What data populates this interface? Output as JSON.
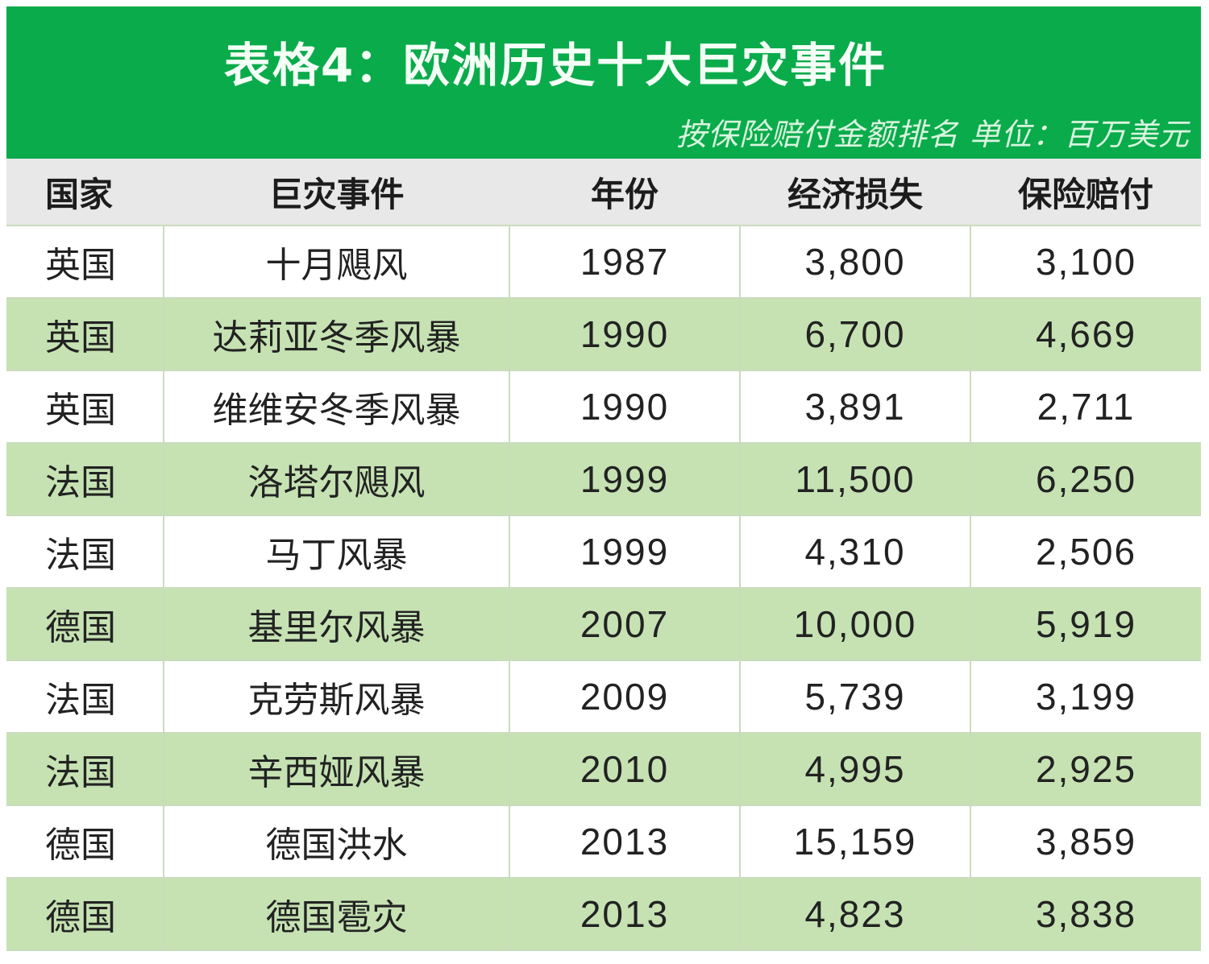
{
  "colors": {
    "banner_bg": "#0aab4b",
    "header_row_bg": "#e8e8e8",
    "alt_row_bg": "#c6e2b3",
    "plain_row_bg": "#ffffff"
  },
  "banner": {
    "title": "表格4：欧洲历史十大巨灾事件",
    "subtitle": "按保险赔付金额排名  单位：百万美元"
  },
  "table": {
    "headers": [
      "国家",
      "巨灾事件",
      "年份",
      "经济损失",
      "保险赔付"
    ],
    "rows": [
      [
        "英国",
        "十月飓风",
        "1987",
        "3,800",
        "3,100"
      ],
      [
        "英国",
        "达莉亚冬季风暴",
        "1990",
        "6,700",
        "4,669"
      ],
      [
        "英国",
        "维维安冬季风暴",
        "1990",
        "3,891",
        "2,711"
      ],
      [
        "法国",
        "洛塔尔飓风",
        "1999",
        "11,500",
        "6,250"
      ],
      [
        "法国",
        "马丁风暴",
        "1999",
        "4,310",
        "2,506"
      ],
      [
        "德国",
        "基里尔风暴",
        "2007",
        "10,000",
        "5,919"
      ],
      [
        "法国",
        "克劳斯风暴",
        "2009",
        "5,739",
        "3,199"
      ],
      [
        "法国",
        "辛西娅风暴",
        "2010",
        "4,995",
        "2,925"
      ],
      [
        "德国",
        "德国洪水",
        "2013",
        "15,159",
        "3,859"
      ],
      [
        "德国",
        "德国雹灾",
        "2013",
        "4,823",
        "3,838"
      ]
    ]
  }
}
